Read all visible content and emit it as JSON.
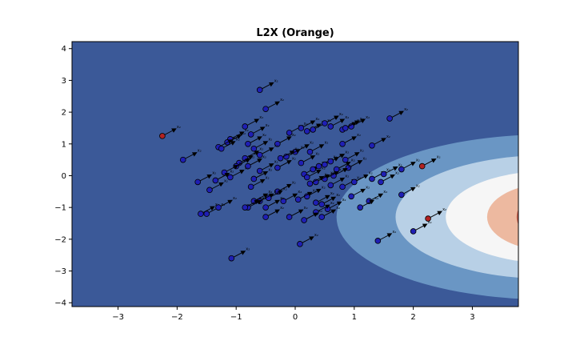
{
  "chart_data": {
    "type": "scatter",
    "title": "L2X (Orange)",
    "xlabel": "",
    "ylabel": "",
    "xlim": [
      -3.78,
      3.78
    ],
    "ylim": [
      -4.12,
      4.22
    ],
    "xticks": [
      -3,
      -2,
      -1,
      0,
      1,
      2,
      3
    ],
    "yticks": [
      -4,
      -3,
      -2,
      -1,
      0,
      1,
      2,
      3,
      4
    ],
    "tick_labels_x": [
      "−3",
      "−2",
      "−1",
      "0",
      "1",
      "2",
      "3"
    ],
    "tick_labels_y": [
      "−4",
      "−3",
      "−2",
      "−1",
      "0",
      "1",
      "2",
      "3",
      "4"
    ],
    "grid": false,
    "legend": "none",
    "arrow_label": "x₂",
    "contour": {
      "description_levels": 7,
      "colors": [
        "#3b5998",
        "#6a96c4",
        "#b8d0e6",
        "#f6f6f6",
        "#edb9a0",
        "#c4604f",
        "#8b1a2e"
      ],
      "center": [
        4.3,
        -1.3
      ],
      "radii_x": [
        3.6,
        2.6,
        1.75,
        1.05,
        0.55,
        0.2
      ],
      "radii_y": [
        2.6,
        1.95,
        1.45,
        1.05,
        0.75,
        0.45
      ]
    },
    "colors": {
      "background": "#3b5998",
      "point_blue": "#1f1fb4",
      "point_red": "#b22222",
      "edge": "#000000"
    },
    "points": [
      {
        "x": -0.6,
        "y": 2.7,
        "c": "blue"
      },
      {
        "x": -0.5,
        "y": 2.1,
        "c": "blue"
      },
      {
        "x": 1.6,
        "y": 1.8,
        "c": "blue"
      },
      {
        "x": -2.25,
        "y": 1.25,
        "c": "red"
      },
      {
        "x": -1.9,
        "y": 0.5,
        "c": "blue"
      },
      {
        "x": -0.85,
        "y": 1.55,
        "c": "blue"
      },
      {
        "x": -0.75,
        "y": 1.3,
        "c": "blue"
      },
      {
        "x": -1.1,
        "y": 1.15,
        "c": "blue"
      },
      {
        "x": -1.15,
        "y": 1.05,
        "c": "blue"
      },
      {
        "x": -1.3,
        "y": 0.9,
        "c": "blue"
      },
      {
        "x": -1.25,
        "y": 0.85,
        "c": "blue"
      },
      {
        "x": -0.8,
        "y": 1.0,
        "c": "blue"
      },
      {
        "x": -0.7,
        "y": 0.85,
        "c": "blue"
      },
      {
        "x": -0.3,
        "y": 1.0,
        "c": "blue"
      },
      {
        "x": -0.1,
        "y": 1.35,
        "c": "blue"
      },
      {
        "x": 0.1,
        "y": 1.5,
        "c": "blue"
      },
      {
        "x": 0.2,
        "y": 1.4,
        "c": "blue"
      },
      {
        "x": 0.3,
        "y": 1.45,
        "c": "blue"
      },
      {
        "x": 0.5,
        "y": 1.65,
        "c": "blue"
      },
      {
        "x": 0.6,
        "y": 1.55,
        "c": "blue"
      },
      {
        "x": 0.8,
        "y": 1.45,
        "c": "blue"
      },
      {
        "x": 0.95,
        "y": 1.55,
        "c": "blue"
      },
      {
        "x": 0.85,
        "y": 1.5,
        "c": "blue"
      },
      {
        "x": 0.8,
        "y": 1.0,
        "c": "blue"
      },
      {
        "x": 1.3,
        "y": 0.95,
        "c": "blue"
      },
      {
        "x": 0.0,
        "y": 0.75,
        "c": "blue"
      },
      {
        "x": -0.15,
        "y": 0.6,
        "c": "blue"
      },
      {
        "x": -0.25,
        "y": 0.55,
        "c": "blue"
      },
      {
        "x": 0.25,
        "y": 0.75,
        "c": "blue"
      },
      {
        "x": -0.6,
        "y": 0.65,
        "c": "blue"
      },
      {
        "x": -0.85,
        "y": 0.55,
        "c": "blue"
      },
      {
        "x": -0.95,
        "y": 0.4,
        "c": "blue"
      },
      {
        "x": -1.0,
        "y": 0.3,
        "c": "blue"
      },
      {
        "x": -0.8,
        "y": 0.3,
        "c": "blue"
      },
      {
        "x": -1.2,
        "y": 0.1,
        "c": "blue"
      },
      {
        "x": -1.35,
        "y": -0.15,
        "c": "blue"
      },
      {
        "x": -1.65,
        "y": -0.2,
        "c": "blue"
      },
      {
        "x": -1.45,
        "y": -0.45,
        "c": "blue"
      },
      {
        "x": -1.1,
        "y": -0.05,
        "c": "blue"
      },
      {
        "x": -0.7,
        "y": -0.1,
        "c": "blue"
      },
      {
        "x": -0.75,
        "y": -0.35,
        "c": "blue"
      },
      {
        "x": -0.6,
        "y": 0.15,
        "c": "blue"
      },
      {
        "x": -0.3,
        "y": 0.25,
        "c": "blue"
      },
      {
        "x": 0.1,
        "y": 0.4,
        "c": "blue"
      },
      {
        "x": 0.15,
        "y": 0.05,
        "c": "blue"
      },
      {
        "x": 0.2,
        "y": -0.05,
        "c": "blue"
      },
      {
        "x": 0.3,
        "y": 0.2,
        "c": "blue"
      },
      {
        "x": 0.4,
        "y": 0.3,
        "c": "blue"
      },
      {
        "x": 0.5,
        "y": 0.35,
        "c": "blue"
      },
      {
        "x": 0.6,
        "y": 0.45,
        "c": "blue"
      },
      {
        "x": 0.7,
        "y": 0.2,
        "c": "blue"
      },
      {
        "x": 0.85,
        "y": 0.5,
        "c": "blue"
      },
      {
        "x": 0.9,
        "y": 0.25,
        "c": "blue"
      },
      {
        "x": 0.65,
        "y": 0.0,
        "c": "blue"
      },
      {
        "x": 0.5,
        "y": -0.1,
        "c": "blue"
      },
      {
        "x": 0.35,
        "y": -0.2,
        "c": "blue"
      },
      {
        "x": 0.25,
        "y": -0.25,
        "c": "blue"
      },
      {
        "x": 0.6,
        "y": -0.3,
        "c": "blue"
      },
      {
        "x": 0.8,
        "y": -0.35,
        "c": "blue"
      },
      {
        "x": 1.0,
        "y": -0.2,
        "c": "blue"
      },
      {
        "x": 0.95,
        "y": -0.65,
        "c": "blue"
      },
      {
        "x": 1.3,
        "y": -0.1,
        "c": "blue"
      },
      {
        "x": 1.5,
        "y": 0.05,
        "c": "blue"
      },
      {
        "x": 1.45,
        "y": -0.2,
        "c": "blue"
      },
      {
        "x": 1.8,
        "y": 0.2,
        "c": "blue"
      },
      {
        "x": 2.15,
        "y": 0.3,
        "c": "red"
      },
      {
        "x": 1.8,
        "y": -0.6,
        "c": "blue"
      },
      {
        "x": 1.25,
        "y": -0.8,
        "c": "blue"
      },
      {
        "x": 1.1,
        "y": -1.0,
        "c": "blue"
      },
      {
        "x": 0.2,
        "y": -0.65,
        "c": "blue"
      },
      {
        "x": 0.05,
        "y": -0.75,
        "c": "blue"
      },
      {
        "x": 0.35,
        "y": -0.85,
        "c": "blue"
      },
      {
        "x": 0.45,
        "y": -0.9,
        "c": "blue"
      },
      {
        "x": 0.55,
        "y": -1.05,
        "c": "blue"
      },
      {
        "x": 0.35,
        "y": -1.15,
        "c": "blue"
      },
      {
        "x": 0.45,
        "y": -1.3,
        "c": "blue"
      },
      {
        "x": 0.15,
        "y": -1.4,
        "c": "blue"
      },
      {
        "x": -0.1,
        "y": -1.3,
        "c": "blue"
      },
      {
        "x": -0.2,
        "y": -0.8,
        "c": "blue"
      },
      {
        "x": -0.3,
        "y": -0.5,
        "c": "blue"
      },
      {
        "x": -0.45,
        "y": -0.7,
        "c": "blue"
      },
      {
        "x": -0.5,
        "y": -1.0,
        "c": "blue"
      },
      {
        "x": -0.6,
        "y": -0.8,
        "c": "blue"
      },
      {
        "x": -0.7,
        "y": -0.8,
        "c": "blue"
      },
      {
        "x": -0.8,
        "y": -1.0,
        "c": "blue"
      },
      {
        "x": -0.85,
        "y": -1.0,
        "c": "blue"
      },
      {
        "x": -0.5,
        "y": -1.3,
        "c": "blue"
      },
      {
        "x": -1.5,
        "y": -1.2,
        "c": "blue"
      },
      {
        "x": -1.6,
        "y": -1.2,
        "c": "blue"
      },
      {
        "x": -1.3,
        "y": -1.0,
        "c": "blue"
      },
      {
        "x": 2.25,
        "y": -1.35,
        "c": "red"
      },
      {
        "x": 2.0,
        "y": -1.75,
        "c": "blue"
      },
      {
        "x": 1.4,
        "y": -2.05,
        "c": "blue"
      },
      {
        "x": 0.08,
        "y": -2.15,
        "c": "blue"
      },
      {
        "x": -1.08,
        "y": -2.6,
        "c": "blue"
      }
    ]
  }
}
